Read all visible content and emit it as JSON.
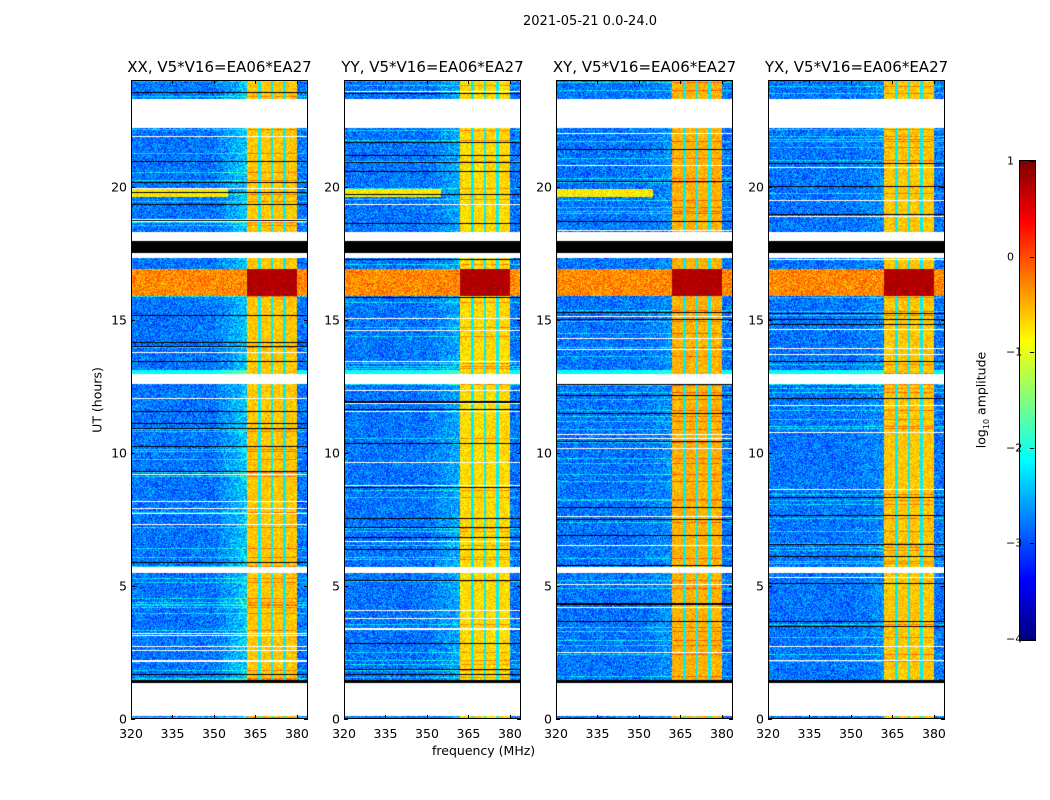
{
  "figure": {
    "suptitle": "2021-05-21 0.0-24.0"
  },
  "chart_data": {
    "type": "heatmap",
    "title": "2021-05-21 0.0-24.0",
    "xlabel": "frequency (MHz)",
    "ylabel": "UT (hours)",
    "xlim": [
      320,
      384
    ],
    "ylim": [
      0,
      24
    ],
    "xticks": [
      320,
      335,
      350,
      365,
      380
    ],
    "yticks": [
      0,
      5,
      10,
      15,
      20
    ],
    "colormap": "jet",
    "colorbar": {
      "label_prefix": "log",
      "label_sub": "10",
      "label_suffix": " amplitude",
      "range": [
        -4,
        1
      ],
      "ticks": [
        "1",
        "0",
        "−1",
        "−2",
        "−3",
        "−4"
      ],
      "tick_values": [
        1,
        0,
        -1,
        -2,
        -3,
        -4
      ]
    },
    "panels": [
      {
        "title": "XX, V5*V16=EA06*EA27",
        "rfi_level": -0.6,
        "edge_glow": 1.0
      },
      {
        "title": "YY, V5*V16=EA06*EA27",
        "rfi_level": -0.7,
        "edge_glow": 0.6
      },
      {
        "title": "XY, V5*V16=EA06*EA27",
        "rfi_level": -0.5,
        "edge_glow": 0.3
      },
      {
        "title": "YX, V5*V16=EA06*EA27",
        "rfi_level": -0.6,
        "edge_glow": 0.3
      }
    ],
    "background_level": -2.8,
    "rfi_band_mhz": [
      362,
      380
    ],
    "rfi_gaps_mhz": [
      366.5,
      371,
      375.5
    ],
    "time_segments": [
      {
        "start": 0.0,
        "end": 0.12,
        "type": "data"
      },
      {
        "start": 0.12,
        "end": 1.35,
        "type": "flagged"
      },
      {
        "start": 1.35,
        "end": 1.48,
        "type": "black"
      },
      {
        "start": 1.48,
        "end": 5.5,
        "type": "data"
      },
      {
        "start": 5.5,
        "end": 5.7,
        "type": "flagged"
      },
      {
        "start": 5.7,
        "end": 12.6,
        "type": "data"
      },
      {
        "start": 12.6,
        "end": 12.95,
        "type": "flagged"
      },
      {
        "start": 12.95,
        "end": 13.1,
        "type": "cyan"
      },
      {
        "start": 13.1,
        "end": 15.9,
        "type": "data"
      },
      {
        "start": 15.9,
        "end": 16.9,
        "type": "strong"
      },
      {
        "start": 16.9,
        "end": 17.3,
        "type": "data"
      },
      {
        "start": 17.3,
        "end": 17.5,
        "type": "flagged"
      },
      {
        "start": 17.5,
        "end": 17.95,
        "type": "black"
      },
      {
        "start": 17.95,
        "end": 18.3,
        "type": "flagged"
      },
      {
        "start": 18.3,
        "end": 22.2,
        "type": "data"
      },
      {
        "start": 22.2,
        "end": 23.3,
        "type": "flagged"
      },
      {
        "start": 23.3,
        "end": 24.0,
        "type": "data"
      }
    ]
  }
}
